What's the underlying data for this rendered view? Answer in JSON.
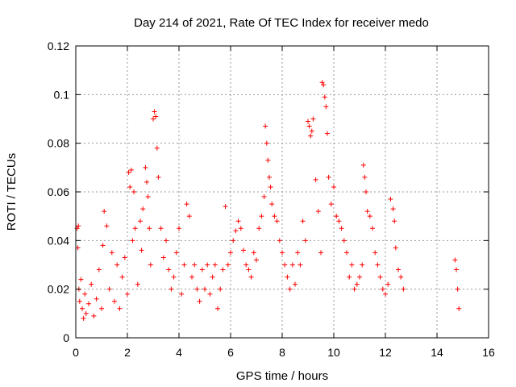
{
  "chart_data": {
    "type": "scatter",
    "title": "Day 214 of 2021, Rate Of TEC Index for receiver medo",
    "xlabel": "GPS time / hours",
    "ylabel": "ROTI / TECUs",
    "xlim": [
      0,
      16
    ],
    "ylim": [
      0,
      0.12
    ],
    "x_ticks": [
      "0",
      "2",
      "4",
      "6",
      "8",
      "10",
      "12",
      "14",
      "16"
    ],
    "y_ticks": [
      "0",
      "0.02",
      "0.04",
      "0.06",
      "0.08",
      "0.1",
      "0.12"
    ],
    "grid": true,
    "marker": "+",
    "color": "#ff0000",
    "series": [
      {
        "x": [
          0.05,
          0.08,
          0.1,
          0.12,
          0.15,
          0.2,
          0.25,
          0.3,
          0.35,
          0.4,
          0.5,
          0.6,
          0.7,
          0.8,
          0.9,
          1.0,
          1.05,
          1.1,
          1.2,
          1.3,
          1.4,
          1.5,
          1.6,
          1.7,
          1.8,
          1.9,
          2.0,
          2.05,
          2.1,
          2.15,
          2.2,
          2.25,
          2.3,
          2.4,
          2.5,
          2.55,
          2.6,
          2.7,
          2.75,
          2.8,
          2.85,
          2.9,
          3.0,
          3.05,
          3.1,
          3.15,
          3.2,
          3.3,
          3.4,
          3.5,
          3.6,
          3.7,
          3.8,
          3.9,
          4.0,
          4.1,
          4.2,
          4.3,
          4.4,
          4.5,
          4.6,
          4.7,
          4.8,
          4.9,
          5.0,
          5.1,
          5.2,
          5.3,
          5.4,
          5.5,
          5.6,
          5.7,
          5.8,
          5.9,
          6.0,
          6.1,
          6.2,
          6.3,
          6.4,
          6.5,
          6.6,
          6.7,
          6.8,
          6.9,
          7.0,
          7.1,
          7.2,
          7.3,
          7.35,
          7.4,
          7.45,
          7.5,
          7.55,
          7.6,
          7.7,
          7.8,
          7.9,
          8.0,
          8.1,
          8.2,
          8.3,
          8.4,
          8.5,
          8.6,
          8.7,
          8.8,
          8.9,
          9.0,
          9.05,
          9.1,
          9.15,
          9.2,
          9.3,
          9.4,
          9.5,
          9.55,
          9.6,
          9.65,
          9.7,
          9.75,
          9.8,
          9.9,
          10.0,
          10.1,
          10.2,
          10.3,
          10.4,
          10.5,
          10.6,
          10.7,
          10.8,
          10.9,
          11.0,
          11.1,
          11.15,
          11.2,
          11.25,
          11.3,
          11.4,
          11.5,
          11.6,
          11.7,
          11.8,
          11.9,
          12.0,
          12.1,
          12.2,
          12.3,
          12.35,
          12.4,
          12.5,
          12.6,
          12.7,
          14.7,
          14.75,
          14.8,
          14.85
        ],
        "y": [
          0.045,
          0.037,
          0.046,
          0.02,
          0.015,
          0.024,
          0.012,
          0.008,
          0.018,
          0.01,
          0.014,
          0.022,
          0.009,
          0.016,
          0.028,
          0.012,
          0.038,
          0.052,
          0.046,
          0.02,
          0.035,
          0.015,
          0.03,
          0.012,
          0.025,
          0.033,
          0.018,
          0.068,
          0.062,
          0.069,
          0.04,
          0.06,
          0.045,
          0.022,
          0.048,
          0.036,
          0.053,
          0.07,
          0.064,
          0.058,
          0.045,
          0.03,
          0.09,
          0.093,
          0.091,
          0.078,
          0.066,
          0.045,
          0.033,
          0.04,
          0.028,
          0.02,
          0.025,
          0.035,
          0.045,
          0.018,
          0.03,
          0.055,
          0.05,
          0.025,
          0.03,
          0.02,
          0.015,
          0.028,
          0.02,
          0.03,
          0.018,
          0.025,
          0.03,
          0.012,
          0.02,
          0.028,
          0.054,
          0.03,
          0.035,
          0.04,
          0.044,
          0.048,
          0.045,
          0.036,
          0.03,
          0.028,
          0.025,
          0.035,
          0.032,
          0.045,
          0.05,
          0.058,
          0.087,
          0.08,
          0.073,
          0.066,
          0.062,
          0.055,
          0.05,
          0.048,
          0.04,
          0.035,
          0.03,
          0.025,
          0.02,
          0.03,
          0.022,
          0.035,
          0.03,
          0.048,
          0.04,
          0.089,
          0.087,
          0.083,
          0.085,
          0.09,
          0.065,
          0.052,
          0.035,
          0.105,
          0.104,
          0.099,
          0.095,
          0.084,
          0.066,
          0.055,
          0.062,
          0.05,
          0.048,
          0.045,
          0.04,
          0.035,
          0.025,
          0.03,
          0.02,
          0.022,
          0.025,
          0.03,
          0.071,
          0.066,
          0.06,
          0.052,
          0.05,
          0.045,
          0.035,
          0.03,
          0.025,
          0.02,
          0.018,
          0.022,
          0.057,
          0.053,
          0.048,
          0.037,
          0.028,
          0.025,
          0.02,
          0.032,
          0.028,
          0.02,
          0.012
        ]
      }
    ]
  }
}
